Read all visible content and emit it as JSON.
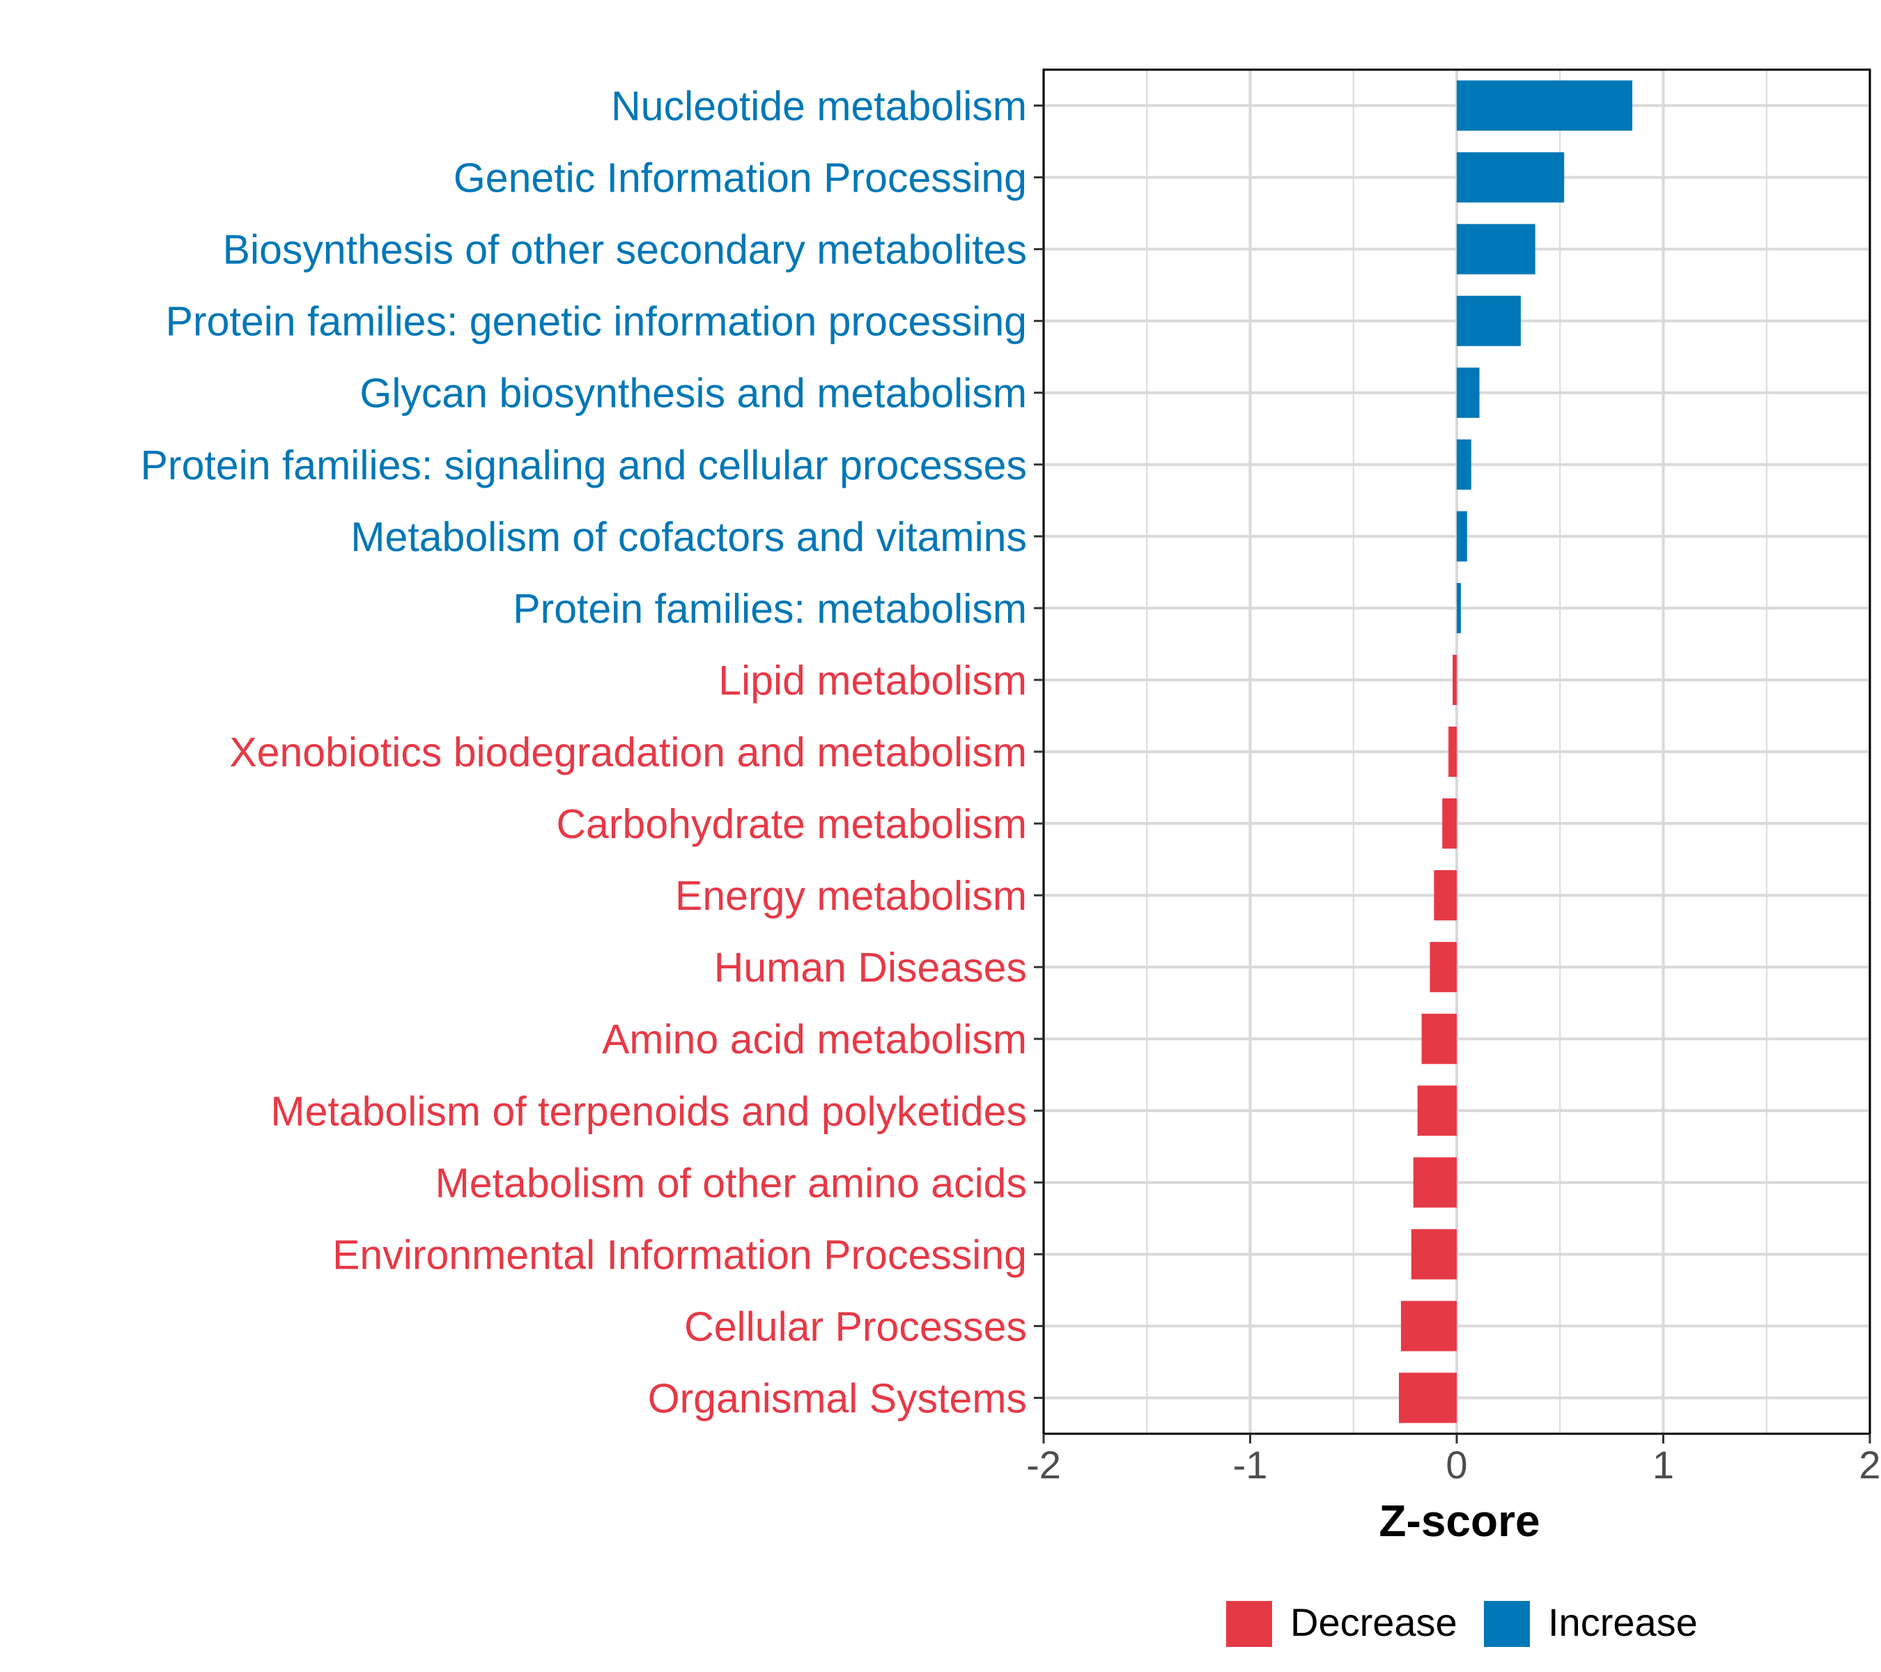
{
  "chart_data": {
    "type": "bar",
    "orientation": "horizontal",
    "title": "",
    "xlabel": "Z-score",
    "ylabel": "",
    "xlim": [
      -2,
      2
    ],
    "xticks": [
      -2,
      -1,
      0,
      1,
      2
    ],
    "xtick_labels": [
      "-2",
      "-1",
      "0",
      "1",
      "2"
    ],
    "grid": true,
    "legend_position": "bottom",
    "colors": {
      "Decrease": "#e63946",
      "Increase": "#0077b6"
    },
    "legend": [
      {
        "name": "Decrease",
        "color": "#e63946"
      },
      {
        "name": "Increase",
        "color": "#0077b6"
      }
    ],
    "categories": [
      "Nucleotide metabolism",
      "Genetic Information Processing",
      "Biosynthesis of other secondary metabolites",
      "Protein families: genetic information processing",
      "Glycan biosynthesis and metabolism",
      "Protein families: signaling and cellular processes",
      "Metabolism of cofactors and vitamins",
      "Protein families: metabolism",
      "Lipid metabolism",
      "Xenobiotics biodegradation and metabolism",
      "Carbohydrate metabolism",
      "Energy metabolism",
      "Human Diseases",
      "Amino acid metabolism",
      "Metabolism of terpenoids and polyketides",
      "Metabolism of other amino acids",
      "Environmental Information Processing",
      "Cellular Processes",
      "Organismal Systems"
    ],
    "values": [
      0.85,
      0.52,
      0.38,
      0.31,
      0.11,
      0.07,
      0.05,
      0.02,
      -0.02,
      -0.04,
      -0.07,
      -0.11,
      -0.13,
      -0.17,
      -0.19,
      -0.21,
      -0.22,
      -0.27,
      -0.28
    ],
    "groups": [
      "Increase",
      "Increase",
      "Increase",
      "Increase",
      "Increase",
      "Increase",
      "Increase",
      "Increase",
      "Decrease",
      "Decrease",
      "Decrease",
      "Decrease",
      "Decrease",
      "Decrease",
      "Decrease",
      "Decrease",
      "Decrease",
      "Decrease",
      "Decrease"
    ]
  }
}
